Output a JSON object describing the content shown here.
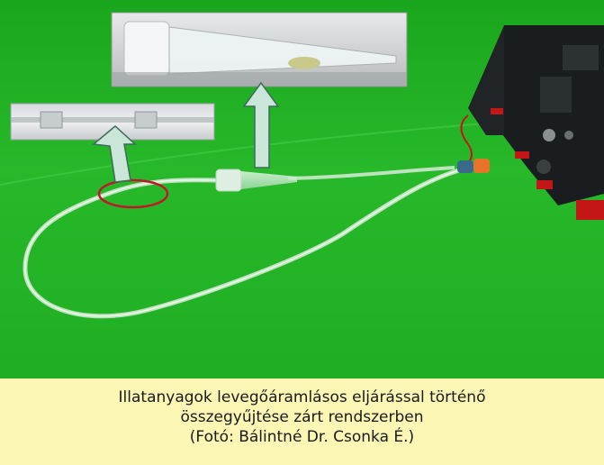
{
  "caption": {
    "line1": "Illatanyagok levegőáramlásos eljárással történő",
    "line2": "összegyűjtése zárt rendszerben",
    "line3": "(Fotó: Bálintné Dr. Csonka É.)"
  },
  "colors": {
    "background_green": "#22b523",
    "caption_bg": "#fbf6b3",
    "arrow_fill": "#c9e6d8",
    "highlight_ellipse": "#c0182a",
    "pump_body": "#1a1d1f",
    "connector_orange": "#e8742a"
  },
  "photo": {
    "subject": "air-flow scent collection apparatus on green table",
    "elements": [
      "glass-collection-funnel",
      "plastic-tubing",
      "air-pump-unit",
      "inset-tube-closeup",
      "inset-funnel-closeup"
    ]
  }
}
